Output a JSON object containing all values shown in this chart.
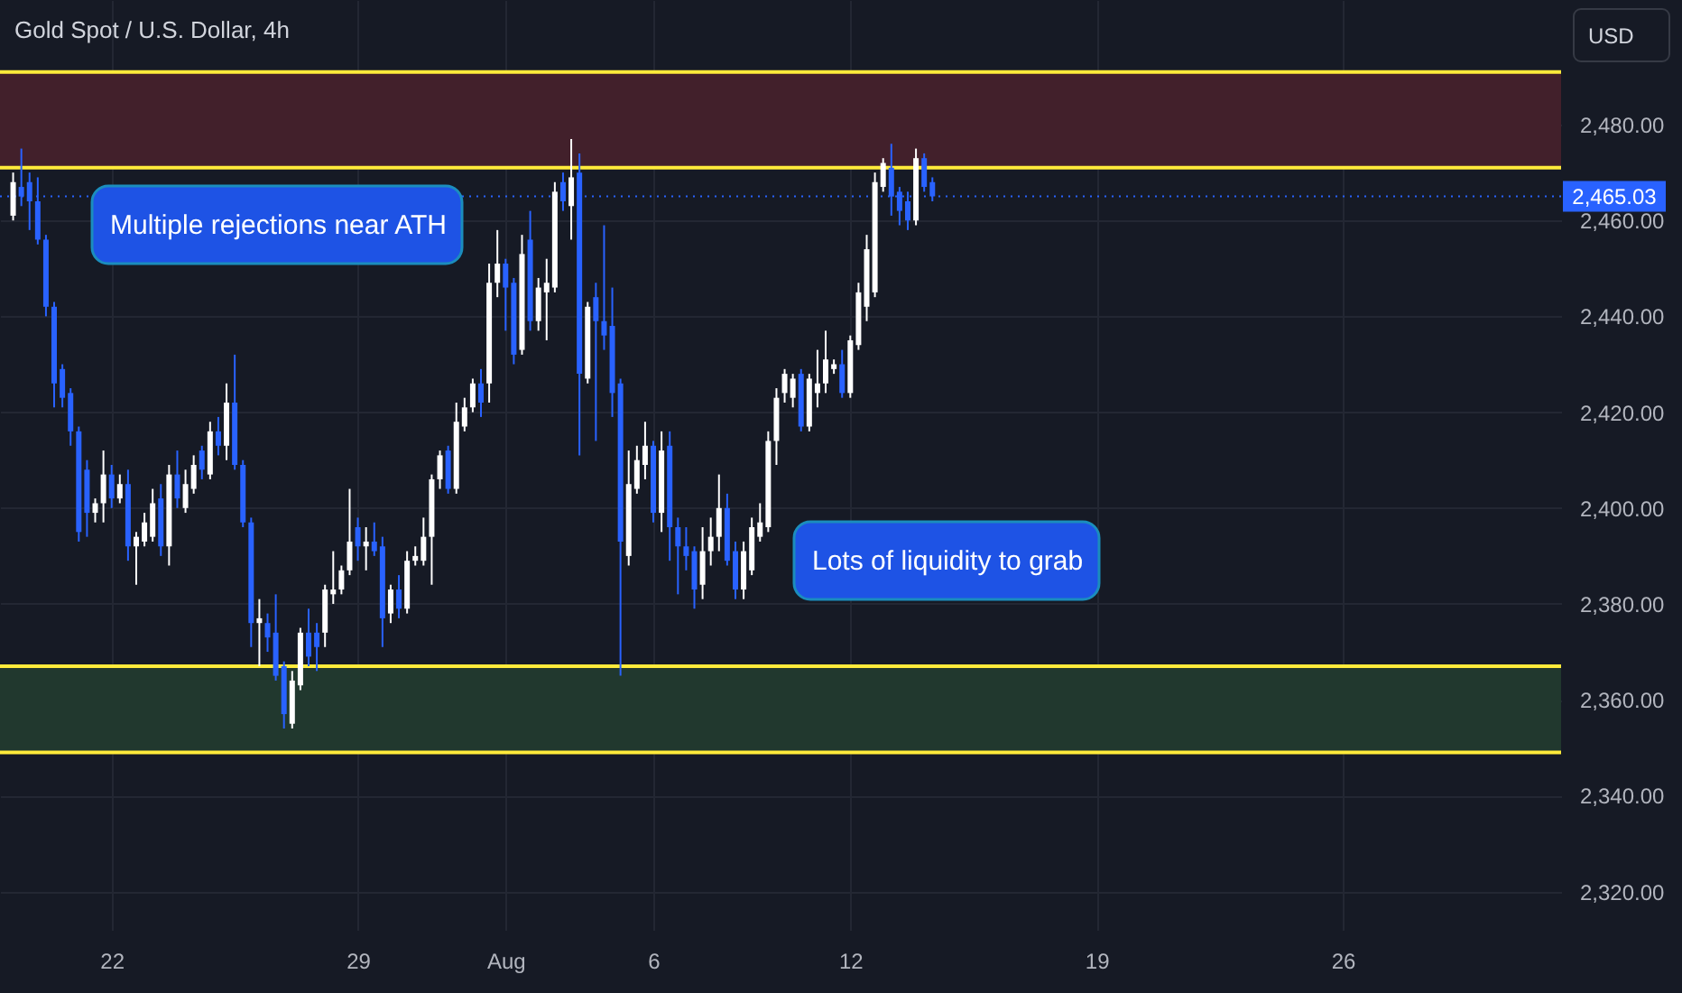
{
  "chart_data": {
    "type": "candlestick",
    "title": "Gold Spot / U.S. Dollar, 4h",
    "ylabel": "USD",
    "categories": [
      null,
      null,
      null,
      null,
      null,
      null,
      null,
      null,
      null,
      null,
      null,
      null,
      "22",
      null,
      null,
      null,
      null,
      null,
      null,
      null,
      null,
      null,
      null,
      null,
      null,
      null,
      null,
      null,
      null,
      null,
      null,
      null,
      null,
      null,
      null,
      null,
      null,
      null,
      null,
      null,
      null,
      null,
      "29",
      null,
      null,
      null,
      null,
      null,
      null,
      null,
      null,
      null,
      null,
      null,
      null,
      null,
      null,
      null,
      null,
      null,
      "Aug",
      null,
      null,
      null,
      null,
      null,
      null,
      null,
      null,
      null,
      null,
      null,
      null,
      null,
      null,
      null,
      null,
      null,
      "6",
      null,
      null,
      null,
      null,
      null,
      null,
      null,
      null,
      null,
      null,
      null,
      null,
      null,
      null,
      null,
      null,
      null,
      null,
      null,
      null,
      null,
      null,
      null,
      "12",
      null,
      null,
      null,
      null,
      null,
      null,
      null,
      null,
      null,
      null,
      null,
      null,
      null,
      null,
      null,
      null,
      null,
      null,
      null,
      null,
      null,
      null,
      null,
      null,
      null,
      null,
      null,
      null,
      null,
      "19",
      null,
      null,
      null,
      null,
      null,
      null,
      null,
      null,
      null,
      null,
      null,
      null,
      null,
      null,
      null,
      null,
      null,
      null,
      null,
      null,
      null,
      null,
      null,
      null,
      null,
      null,
      null,
      null,
      null,
      "26",
      null,
      null,
      null,
      null,
      null,
      null,
      null,
      null,
      null,
      null,
      null,
      null,
      null,
      null,
      null,
      null,
      null,
      null,
      null,
      null,
      null,
      null,
      null,
      null,
      null
    ],
    "ohlc": [
      [
        2461,
        2470,
        2460,
        2468
      ],
      [
        2467,
        2475,
        2463,
        2465
      ],
      [
        2468,
        2470,
        2458,
        2464
      ],
      [
        2464,
        2469,
        2455,
        2456
      ],
      [
        2456,
        2457,
        2440,
        2442
      ],
      [
        2442,
        2443,
        2421,
        2426
      ],
      [
        2429,
        2430,
        2421,
        2423
      ],
      [
        2424,
        2425,
        2413,
        2416
      ],
      [
        2416,
        2417,
        2393,
        2395
      ],
      [
        2408,
        2410,
        2394,
        2399
      ],
      [
        2399,
        2402,
        2397,
        2401
      ],
      [
        2401,
        2412,
        2397,
        2407
      ],
      [
        2407,
        2409,
        2400,
        2402
      ],
      [
        2402,
        2407,
        2401,
        2405
      ],
      [
        2405,
        2408,
        2389,
        2392
      ],
      [
        2392,
        2395,
        2384,
        2394
      ],
      [
        2393,
        2399,
        2392,
        2397
      ],
      [
        2394,
        2404,
        2393,
        2401
      ],
      [
        2402,
        2405,
        2390,
        2392
      ],
      [
        2392,
        2409,
        2388,
        2407
      ],
      [
        2407,
        2412,
        2400,
        2402
      ],
      [
        2400,
        2408,
        2399,
        2405
      ],
      [
        2404,
        2411,
        2403,
        2409
      ],
      [
        2412,
        2413,
        2406,
        2408
      ],
      [
        2407,
        2418,
        2406,
        2416
      ],
      [
        2416,
        2419,
        2411,
        2413
      ],
      [
        2413,
        2426,
        2410,
        2422
      ],
      [
        2422,
        2432,
        2408,
        2409
      ],
      [
        2409,
        2410,
        2396,
        2397
      ],
      [
        2397,
        2398,
        2371,
        2376
      ],
      [
        2376,
        2381,
        2367,
        2377
      ],
      [
        2376,
        2378,
        2370,
        2373
      ],
      [
        2374,
        2382,
        2364,
        2365
      ],
      [
        2367,
        2368,
        2354,
        2357
      ],
      [
        2355,
        2366,
        2354,
        2364
      ],
      [
        2363,
        2375,
        2362,
        2374
      ],
      [
        2374,
        2379,
        2367,
        2369
      ],
      [
        2374,
        2376,
        2366,
        2371
      ],
      [
        2374,
        2384,
        2371,
        2383
      ],
      [
        2382,
        2391,
        2380,
        2383
      ],
      [
        2383,
        2388,
        2382,
        2387
      ],
      [
        2387,
        2404,
        2386,
        2393
      ],
      [
        2396,
        2398,
        2389,
        2392
      ],
      [
        2392,
        2396,
        2387,
        2393
      ],
      [
        2393,
        2397,
        2390,
        2391
      ],
      [
        2392,
        2394,
        2371,
        2377
      ],
      [
        2378,
        2384,
        2376,
        2383
      ],
      [
        2383,
        2386,
        2377,
        2379
      ],
      [
        2379,
        2391,
        2378,
        2389
      ],
      [
        2389,
        2392,
        2388,
        2390
      ],
      [
        2389,
        2398,
        2388,
        2394
      ],
      [
        2394,
        2407,
        2384,
        2406
      ],
      [
        2406,
        2412,
        2404,
        2411
      ],
      [
        2412,
        2413,
        2403,
        2404
      ],
      [
        2404,
        2422,
        2403,
        2418
      ],
      [
        2417,
        2423,
        2416,
        2421
      ],
      [
        2421,
        2427,
        2420,
        2426
      ],
      [
        2426,
        2429,
        2419,
        2422
      ],
      [
        2426,
        2451,
        2422,
        2447
      ],
      [
        2447,
        2458,
        2444,
        2451
      ],
      [
        2451,
        2452,
        2437,
        2446
      ],
      [
        2447,
        2448,
        2430,
        2432
      ],
      [
        2433,
        2457,
        2432,
        2453
      ],
      [
        2456,
        2462,
        2437,
        2439
      ],
      [
        2439,
        2448,
        2437,
        2446
      ],
      [
        2445,
        2452,
        2435,
        2447
      ],
      [
        2446,
        2468,
        2445,
        2466
      ],
      [
        2468,
        2470,
        2462,
        2464
      ],
      [
        2463,
        2477,
        2456,
        2469
      ],
      [
        2470,
        2474,
        2411,
        2428
      ],
      [
        2427,
        2443,
        2426,
        2442
      ],
      [
        2444,
        2447,
        2414,
        2439
      ],
      [
        2439,
        2459,
        2433,
        2436
      ],
      [
        2438,
        2446,
        2419,
        2424
      ],
      [
        2426,
        2427,
        2365,
        2393
      ],
      [
        2390,
        2412,
        2388,
        2405
      ],
      [
        2404,
        2413,
        2403,
        2410
      ],
      [
        2409,
        2418,
        2406,
        2413
      ],
      [
        2413,
        2414,
        2397,
        2399
      ],
      [
        2399,
        2416,
        2395,
        2412
      ],
      [
        2413,
        2416,
        2389,
        2396
      ],
      [
        2396,
        2398,
        2382,
        2392
      ],
      [
        2392,
        2396,
        2387,
        2390
      ],
      [
        2391,
        2392,
        2379,
        2383
      ],
      [
        2384,
        2396,
        2381,
        2391
      ],
      [
        2391,
        2398,
        2388,
        2394
      ],
      [
        2394,
        2407,
        2391,
        2400
      ],
      [
        2400,
        2403,
        2388,
        2389
      ],
      [
        2391,
        2393,
        2381,
        2383
      ],
      [
        2383,
        2393,
        2381,
        2391
      ],
      [
        2387,
        2398,
        2386,
        2396
      ],
      [
        2394,
        2401,
        2393,
        2397
      ],
      [
        2396,
        2416,
        2395,
        2414
      ],
      [
        2414,
        2425,
        2409,
        2423
      ],
      [
        2424,
        2429,
        2422,
        2428
      ],
      [
        2423,
        2428,
        2421,
        2427
      ],
      [
        2428,
        2429,
        2416,
        2417
      ],
      [
        2417,
        2428,
        2416,
        2427
      ],
      [
        2424,
        2433,
        2421,
        2426
      ],
      [
        2426,
        2437,
        2424,
        2431
      ],
      [
        2429,
        2431,
        2428,
        2430
      ],
      [
        2430,
        2433,
        2423,
        2424
      ],
      [
        2424,
        2436,
        2423,
        2435
      ],
      [
        2434,
        2447,
        2433,
        2445
      ],
      [
        2442,
        2457,
        2439,
        2454
      ],
      [
        2445,
        2470,
        2444,
        2468
      ],
      [
        2467,
        2473,
        2466,
        2472
      ],
      [
        2471,
        2476,
        2461,
        2465
      ],
      [
        2466,
        2467,
        2459,
        2462
      ],
      [
        2464,
        2466,
        2458,
        2460
      ],
      [
        2460,
        2475,
        2459,
        2473
      ],
      [
        2473,
        2474,
        2466,
        2467
      ],
      [
        2468,
        2469,
        2464,
        2465.03
      ],
      null,
      null,
      null,
      null,
      null,
      null,
      null,
      null,
      null,
      null,
      null,
      null,
      null,
      null,
      null,
      null,
      null,
      null,
      null,
      null,
      null,
      null,
      null,
      null,
      null,
      null,
      null,
      null,
      null,
      null,
      null,
      null,
      null,
      null,
      null,
      null,
      null,
      null,
      null,
      null,
      null,
      null,
      null,
      null,
      null,
      null,
      null,
      null,
      null,
      null,
      null,
      null,
      null,
      null,
      null,
      null,
      null,
      null,
      null,
      null,
      null,
      null,
      null,
      null,
      null,
      null,
      null,
      null,
      null,
      null,
      null,
      null,
      null,
      null,
      null
    ],
    "colors": [
      "#ffffff",
      "#2962ff",
      "#2962ff",
      "#2962ff",
      "#2962ff",
      "#2962ff",
      "#2962ff",
      "#2962ff",
      "#2962ff",
      "#2962ff",
      "#ffffff",
      "#ffffff",
      "#2962ff",
      "#ffffff",
      "#2962ff",
      "#ffffff",
      "#ffffff",
      "#ffffff",
      "#2962ff",
      "#ffffff",
      "#2962ff",
      "#ffffff",
      "#ffffff",
      "#2962ff",
      "#ffffff",
      "#2962ff",
      "#ffffff",
      "#2962ff",
      "#2962ff",
      "#2962ff",
      "#ffffff",
      "#2962ff",
      "#2962ff",
      "#2962ff",
      "#ffffff",
      "#ffffff",
      "#2962ff",
      "#2962ff",
      "#ffffff",
      "#ffffff",
      "#ffffff",
      "#ffffff",
      "#2962ff",
      "#ffffff",
      "#2962ff",
      "#2962ff",
      "#ffffff",
      "#2962ff",
      "#ffffff",
      "#ffffff",
      "#ffffff",
      "#ffffff",
      "#ffffff",
      "#2962ff",
      "#ffffff",
      "#ffffff",
      "#ffffff",
      "#2962ff",
      "#ffffff",
      "#ffffff",
      "#2962ff",
      "#2962ff",
      "#ffffff",
      "#2962ff",
      "#ffffff",
      "#ffffff",
      "#ffffff",
      "#2962ff",
      "#ffffff",
      "#2962ff",
      "#ffffff",
      "#2962ff",
      "#2962ff",
      "#2962ff",
      "#2962ff",
      "#ffffff",
      "#ffffff",
      "#ffffff",
      "#2962ff",
      "#ffffff",
      "#2962ff",
      "#2962ff",
      "#2962ff",
      "#2962ff",
      "#ffffff",
      "#ffffff",
      "#ffffff",
      "#2962ff",
      "#2962ff",
      "#ffffff",
      "#ffffff",
      "#ffffff",
      "#ffffff",
      "#ffffff",
      "#ffffff",
      "#ffffff",
      "#2962ff",
      "#ffffff",
      "#ffffff",
      "#ffffff",
      "#ffffff",
      "#2962ff",
      "#ffffff",
      "#ffffff",
      "#ffffff",
      "#ffffff",
      "#ffffff",
      "#2962ff",
      "#2962ff",
      "#2962ff",
      "#ffffff",
      "#2962ff",
      "#2962ff",
      null,
      null,
      null,
      null,
      null,
      null,
      null,
      null,
      null,
      null,
      null,
      null,
      null,
      null,
      null,
      null,
      null,
      null,
      null,
      null,
      null,
      null,
      null,
      null,
      null,
      null,
      null,
      null,
      null,
      null,
      null,
      null,
      null,
      null,
      null,
      null,
      null,
      null,
      null,
      null,
      null,
      null,
      null,
      null,
      null,
      null,
      null,
      null,
      null,
      null,
      null,
      null,
      null,
      null,
      null,
      null,
      null,
      null,
      null,
      null,
      null,
      null,
      null,
      null,
      null,
      null,
      null,
      null,
      null,
      null,
      null,
      null,
      null,
      null,
      null
    ],
    "ylim": [
      2312,
      2506
    ],
    "yticks": [
      {
        "value": 2320,
        "label": "2,320.00"
      },
      {
        "value": 2340,
        "label": "2,340.00"
      },
      {
        "value": 2360,
        "label": "2,360.00"
      },
      {
        "value": 2380,
        "label": "2,380.00"
      },
      {
        "value": 2400,
        "label": "2,400.00"
      },
      {
        "value": 2420,
        "label": "2,420.00"
      },
      {
        "value": 2440,
        "label": "2,440.00"
      },
      {
        "value": 2460,
        "label": "2,460.00"
      },
      {
        "value": 2480,
        "label": "2,480.00"
      }
    ],
    "grid": true,
    "bands": [
      {
        "axis": "y",
        "from": 2471,
        "to": 2491,
        "color": "#42202b"
      },
      {
        "axis": "y",
        "from": 2349,
        "to": 2367,
        "color": "#21382e"
      }
    ],
    "ref_lines": [
      {
        "axis": "y",
        "value": 2491,
        "color": "#ffeb3b",
        "line_style": "solid"
      },
      {
        "axis": "y",
        "value": 2471,
        "color": "#ffeb3b",
        "line_style": "solid"
      },
      {
        "axis": "y",
        "value": 2367,
        "color": "#ffeb3b",
        "line_style": "solid"
      },
      {
        "axis": "y",
        "value": 2349,
        "color": "#ffeb3b",
        "line_style": "solid"
      },
      {
        "axis": "y",
        "value": 2465.03,
        "label": "2,465.03",
        "color": "#2962ff",
        "line_style": "dotted"
      }
    ],
    "annotations": [
      "Multiple rejections near ATH",
      "Lots of liquidity to grab"
    ]
  }
}
